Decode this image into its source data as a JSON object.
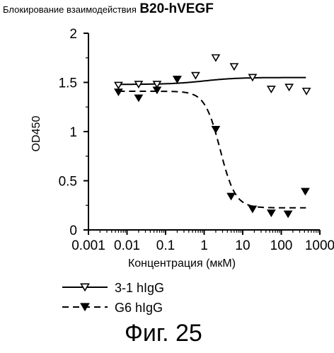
{
  "chart_data": {
    "type": "scatter",
    "title_prefix": "Блокирование взаимодействия",
    "title_suffix": "B20-hVEGF",
    "xlabel": "Концентрация (мкМ)",
    "ylabel": "OD450",
    "x_scale": "log",
    "xlim": [
      0.001,
      1000
    ],
    "ylim": [
      0,
      2
    ],
    "x_ticks": [
      "0.001",
      "0.01",
      "0.1",
      "1",
      "10",
      "100",
      "1000"
    ],
    "y_ticks": [
      "0",
      "0.5",
      "1",
      "1.5",
      "2"
    ],
    "grid": false,
    "legend_position": "bottom-left",
    "series": [
      {
        "name": "3-1 hIgG",
        "marker": "open-triangle-down",
        "line": "solid",
        "x": [
          0.006,
          0.02,
          0.06,
          0.2,
          0.6,
          2,
          6,
          18,
          55,
          160,
          450
        ],
        "y": [
          1.47,
          1.48,
          1.48,
          1.53,
          1.57,
          1.75,
          1.66,
          1.55,
          1.43,
          1.45,
          1.41
        ],
        "fit": {
          "bottom": 1.48,
          "top": 1.55,
          "ec50": 1
        }
      },
      {
        "name": "G6 hIgG",
        "marker": "filled-triangle-down",
        "line": "dashed",
        "x": [
          0.006,
          0.02,
          0.06,
          0.2,
          2,
          5,
          18,
          55,
          150,
          420
        ],
        "y": [
          1.4,
          1.34,
          1.42,
          1.53,
          1.02,
          0.34,
          0.21,
          0.17,
          0.16,
          0.39
        ],
        "fit": {
          "top": 1.41,
          "bottom": 0.225,
          "ec50": 2.6,
          "hill": 2.2
        }
      }
    ]
  },
  "caption": "Фиг. 25"
}
